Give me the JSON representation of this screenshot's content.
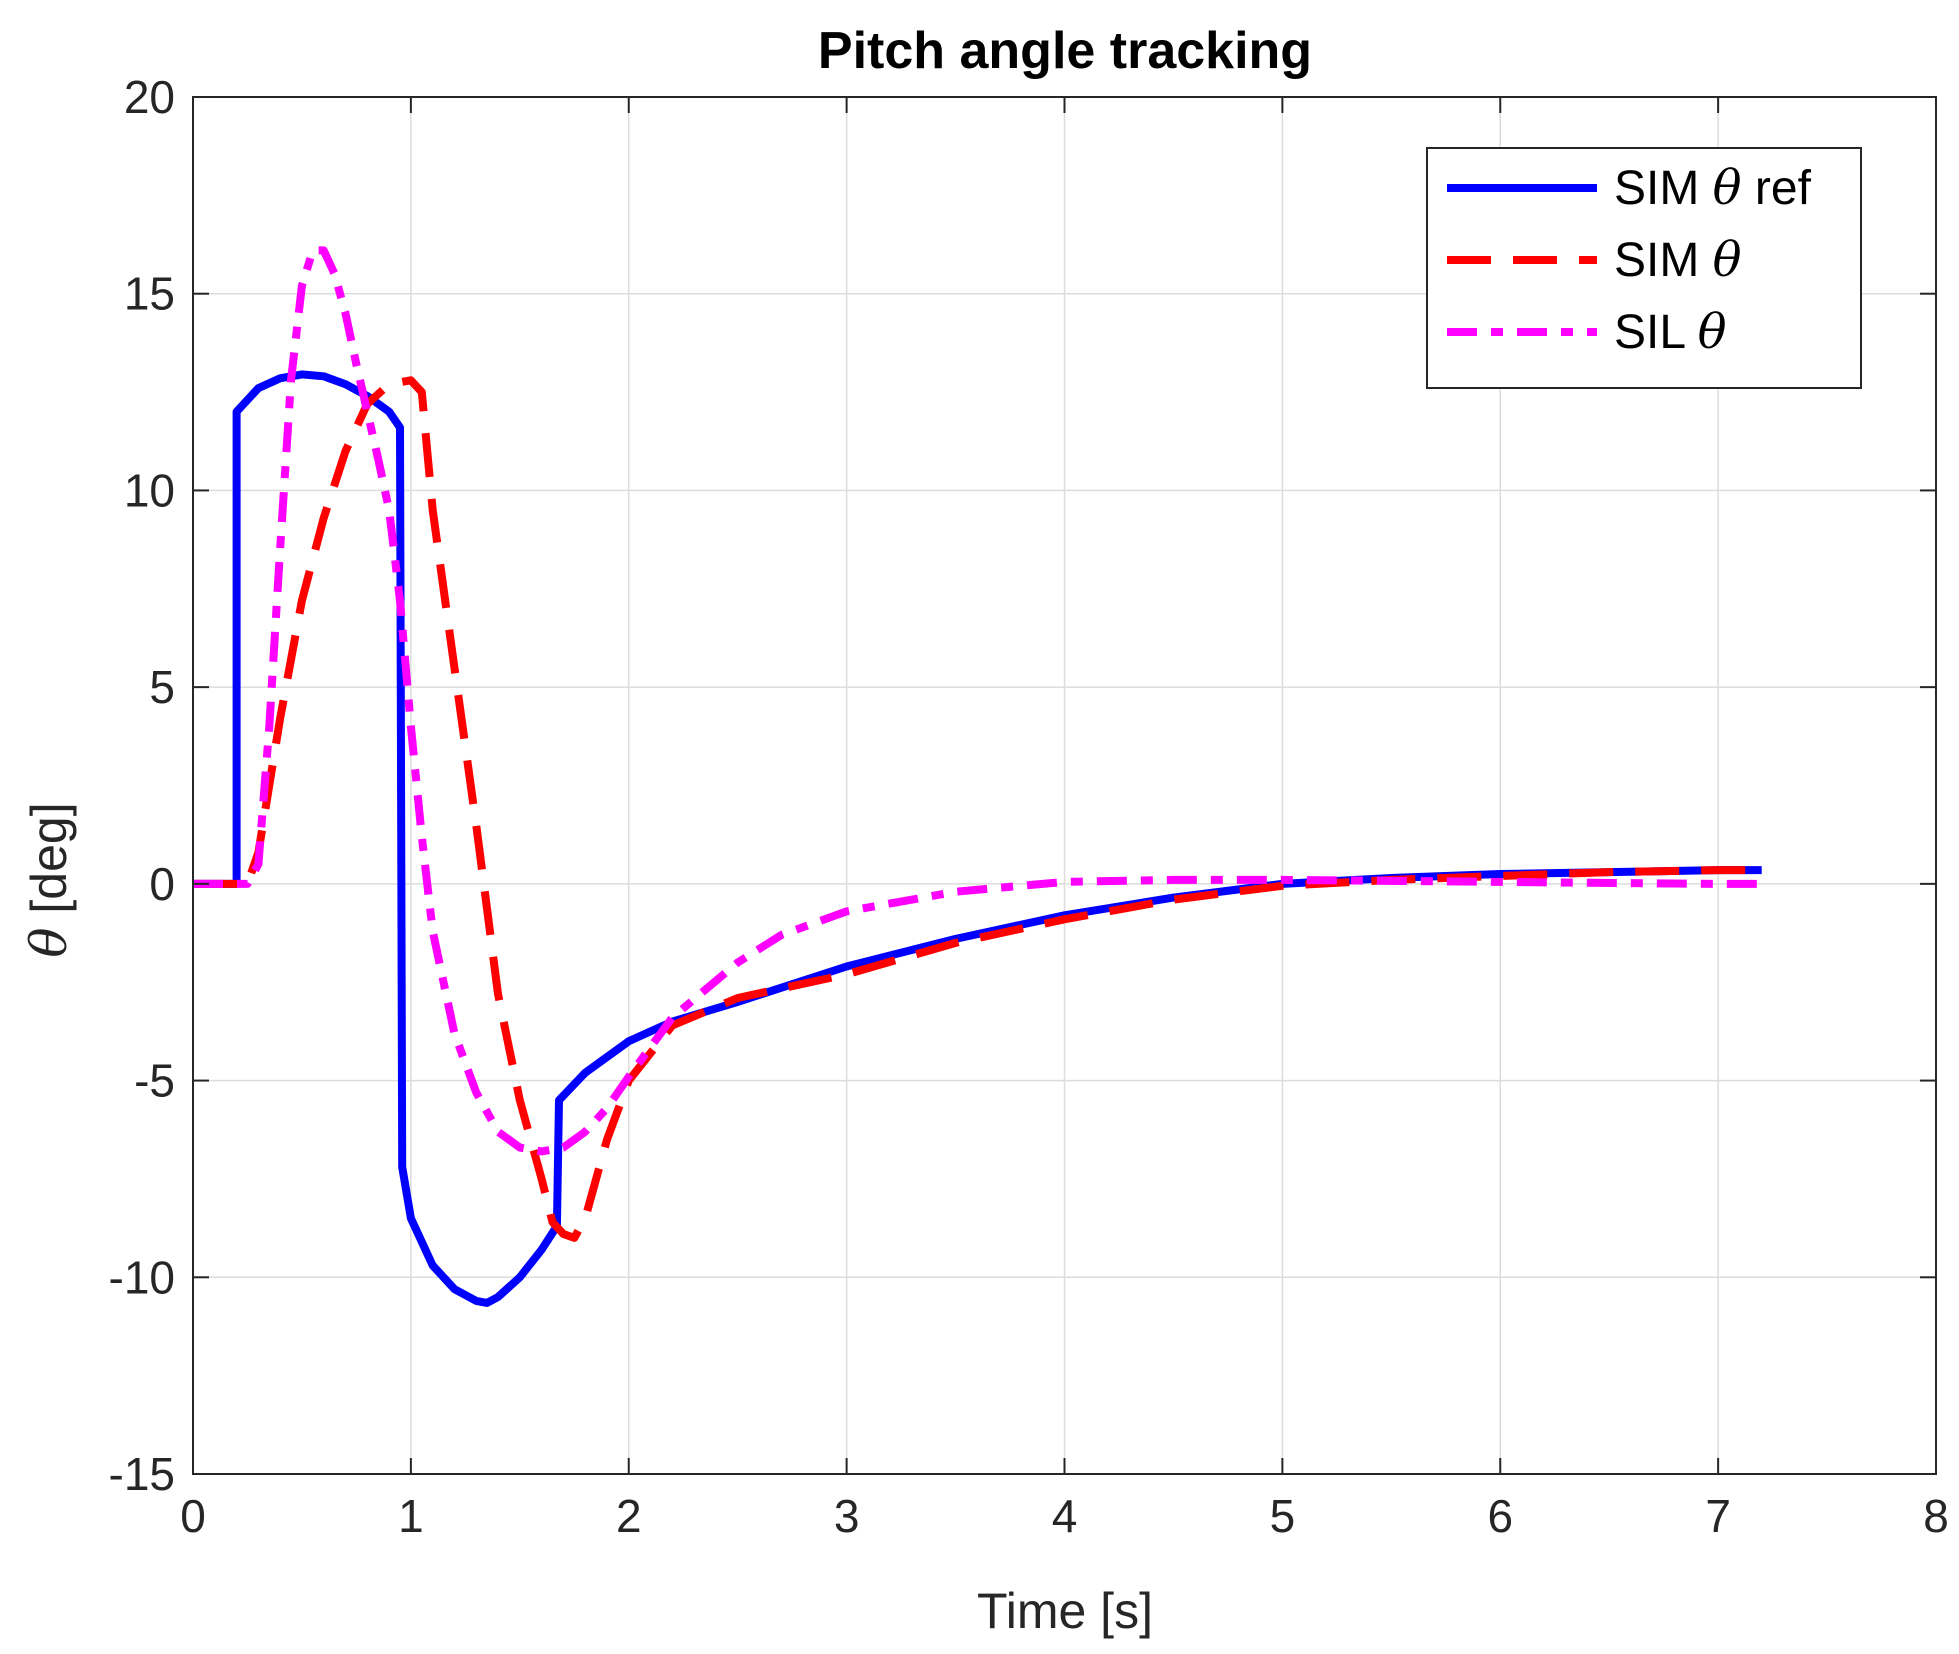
{
  "chart_data": {
    "type": "line",
    "title": "Pitch angle tracking",
    "xlabel": "Time [s]",
    "ylabel_symbol": "θ",
    "ylabel_unit": "[deg]",
    "xlim": [
      0,
      8
    ],
    "ylim": [
      -15,
      20
    ],
    "xticks": [
      0,
      1,
      2,
      3,
      4,
      5,
      6,
      7,
      8
    ],
    "xtick_labels": [
      "0",
      "1",
      "2",
      "3",
      "4",
      "5",
      "6",
      "7",
      "8"
    ],
    "yticks": [
      -15,
      -10,
      -5,
      0,
      5,
      10,
      15,
      20
    ],
    "ytick_labels": [
      "-15",
      "-10",
      "-5",
      "0",
      "5",
      "10",
      "15",
      "20"
    ],
    "grid": true,
    "legend_position": "top-right",
    "series": [
      {
        "name": "SIM θ ref",
        "legend_prefix": "SIM",
        "legend_symbol": "θ",
        "legend_suffix": "ref",
        "color": "#0000ff",
        "style": "solid",
        "x": [
          0,
          0.19,
          0.2,
          0.2,
          0.3,
          0.4,
          0.5,
          0.6,
          0.7,
          0.8,
          0.9,
          0.95,
          0.96,
          1.0,
          1.1,
          1.2,
          1.3,
          1.35,
          1.4,
          1.5,
          1.6,
          1.67,
          1.68,
          1.8,
          2.0,
          2.2,
          2.5,
          3.0,
          3.5,
          4.0,
          4.5,
          5.0,
          5.5,
          6.0,
          6.5,
          7.0,
          7.2
        ],
        "y": [
          0,
          0,
          0,
          12.0,
          12.6,
          12.85,
          12.95,
          12.9,
          12.7,
          12.4,
          12.0,
          11.6,
          -7.2,
          -8.5,
          -9.7,
          -10.3,
          -10.6,
          -10.65,
          -10.5,
          -10.0,
          -9.3,
          -8.7,
          -5.5,
          -4.8,
          -4.0,
          -3.5,
          -3.0,
          -2.1,
          -1.4,
          -0.8,
          -0.35,
          0.0,
          0.15,
          0.25,
          0.3,
          0.35,
          0.35
        ]
      },
      {
        "name": "SIM θ",
        "legend_prefix": "SIM",
        "legend_symbol": "θ",
        "legend_suffix": "",
        "color": "#ff0000",
        "style": "dashed",
        "x": [
          0,
          0.25,
          0.3,
          0.4,
          0.5,
          0.6,
          0.7,
          0.8,
          0.9,
          1.0,
          1.05,
          1.1,
          1.2,
          1.3,
          1.4,
          1.5,
          1.6,
          1.65,
          1.7,
          1.75,
          1.8,
          1.9,
          2.0,
          2.2,
          2.5,
          3.0,
          3.5,
          4.0,
          4.5,
          5.0,
          5.5,
          6.0,
          6.5,
          7.0,
          7.2
        ],
        "y": [
          0,
          0,
          0.8,
          4.2,
          7.2,
          9.3,
          11.0,
          12.2,
          12.7,
          12.8,
          12.5,
          9.5,
          5.5,
          1.5,
          -2.8,
          -5.5,
          -7.5,
          -8.6,
          -8.9,
          -9.0,
          -8.5,
          -6.5,
          -5.0,
          -3.6,
          -2.9,
          -2.3,
          -1.5,
          -0.9,
          -0.4,
          -0.05,
          0.1,
          0.2,
          0.3,
          0.35,
          0.35
        ]
      },
      {
        "name": "SIL θ",
        "legend_prefix": "SIL",
        "legend_symbol": "θ",
        "legend_suffix": "",
        "color": "#ff00ff",
        "style": "dashdot",
        "x": [
          0,
          0.25,
          0.3,
          0.35,
          0.4,
          0.45,
          0.5,
          0.55,
          0.6,
          0.65,
          0.7,
          0.75,
          0.8,
          0.85,
          0.9,
          0.95,
          1.0,
          1.05,
          1.1,
          1.2,
          1.3,
          1.4,
          1.5,
          1.6,
          1.7,
          1.8,
          1.9,
          2.0,
          2.2,
          2.5,
          2.7,
          3.0,
          3.5,
          4.0,
          4.5,
          5.0,
          6.0,
          7.0,
          7.2
        ],
        "y": [
          0,
          0,
          0.5,
          4.0,
          8.5,
          12.8,
          15.2,
          16.1,
          16.1,
          15.5,
          14.5,
          13.2,
          12.0,
          10.8,
          9.5,
          7.2,
          4.0,
          1.2,
          -1.2,
          -3.8,
          -5.3,
          -6.3,
          -6.7,
          -6.8,
          -6.7,
          -6.3,
          -5.7,
          -4.9,
          -3.4,
          -2.0,
          -1.3,
          -0.7,
          -0.2,
          0.05,
          0.1,
          0.1,
          0.05,
          0,
          0
        ]
      }
    ]
  }
}
